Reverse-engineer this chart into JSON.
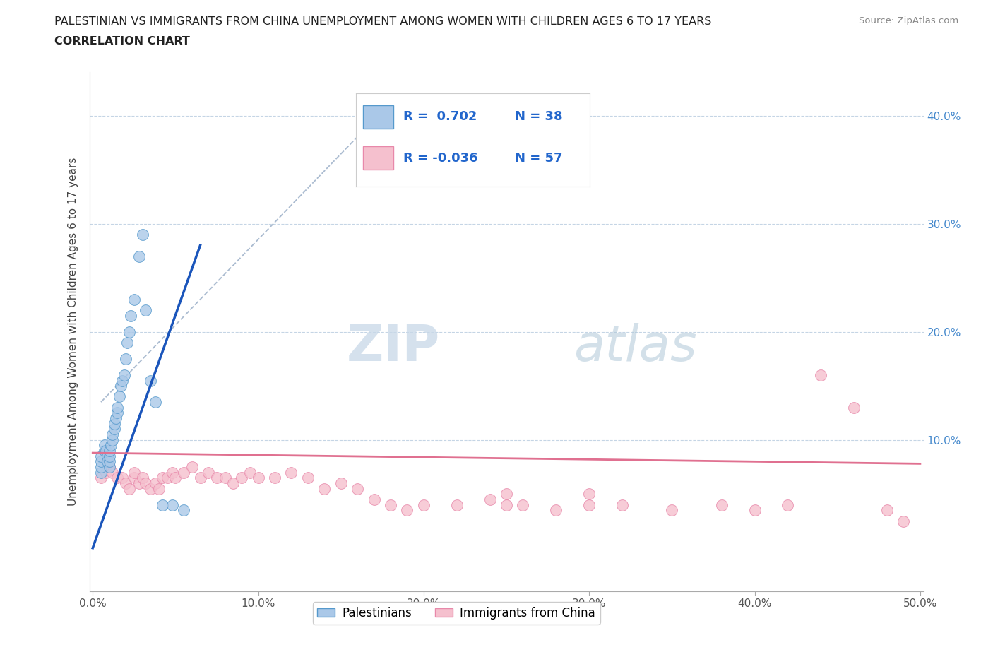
{
  "title_line1": "PALESTINIAN VS IMMIGRANTS FROM CHINA UNEMPLOYMENT AMONG WOMEN WITH CHILDREN AGES 6 TO 17 YEARS",
  "title_line2": "CORRELATION CHART",
  "source": "Source: ZipAtlas.com",
  "ylabel": "Unemployment Among Women with Children Ages 6 to 17 years",
  "xlim": [
    -0.002,
    0.502
  ],
  "ylim": [
    -0.04,
    0.44
  ],
  "xticks": [
    0.0,
    0.1,
    0.2,
    0.3,
    0.4,
    0.5
  ],
  "xticklabels": [
    "0.0%",
    "10.0%",
    "20.0%",
    "30.0%",
    "40.0%",
    "50.0%"
  ],
  "yticks": [
    0.0,
    0.1,
    0.2,
    0.3,
    0.4
  ],
  "yticklabels_right": [
    "",
    "10.0%",
    "20.0%",
    "30.0%",
    "40.0%"
  ],
  "palestinians_color": "#aac8e8",
  "palestinians_edge": "#5599cc",
  "china_color": "#f5c0ce",
  "china_edge": "#e888aa",
  "blue_line_color": "#1a55bb",
  "pink_line_color": "#e07090",
  "dashed_line_color": "#aabbd0",
  "watermark_zip": "ZIP",
  "watermark_atlas": "atlas",
  "palestinians_x": [
    0.005,
    0.005,
    0.005,
    0.005,
    0.007,
    0.007,
    0.008,
    0.009,
    0.009,
    0.01,
    0.01,
    0.01,
    0.01,
    0.011,
    0.012,
    0.012,
    0.013,
    0.013,
    0.014,
    0.015,
    0.015,
    0.016,
    0.017,
    0.018,
    0.019,
    0.02,
    0.021,
    0.022,
    0.023,
    0.025,
    0.028,
    0.03,
    0.032,
    0.035,
    0.038,
    0.042,
    0.048,
    0.055
  ],
  "palestinians_y": [
    0.07,
    0.075,
    0.08,
    0.085,
    0.09,
    0.095,
    0.09,
    0.085,
    0.08,
    0.075,
    0.08,
    0.085,
    0.09,
    0.095,
    0.1,
    0.105,
    0.11,
    0.115,
    0.12,
    0.125,
    0.13,
    0.14,
    0.15,
    0.155,
    0.16,
    0.175,
    0.19,
    0.2,
    0.215,
    0.23,
    0.27,
    0.29,
    0.22,
    0.155,
    0.135,
    0.04,
    0.04,
    0.035
  ],
  "china_x": [
    0.005,
    0.008,
    0.01,
    0.012,
    0.015,
    0.018,
    0.02,
    0.022,
    0.025,
    0.025,
    0.028,
    0.03,
    0.032,
    0.035,
    0.038,
    0.04,
    0.042,
    0.045,
    0.048,
    0.05,
    0.055,
    0.06,
    0.065,
    0.07,
    0.075,
    0.08,
    0.085,
    0.09,
    0.095,
    0.1,
    0.11,
    0.12,
    0.13,
    0.14,
    0.15,
    0.16,
    0.17,
    0.18,
    0.19,
    0.2,
    0.22,
    0.24,
    0.25,
    0.26,
    0.28,
    0.3,
    0.32,
    0.35,
    0.38,
    0.4,
    0.42,
    0.44,
    0.46,
    0.48,
    0.49,
    0.3,
    0.25
  ],
  "china_y": [
    0.065,
    0.07,
    0.075,
    0.07,
    0.065,
    0.065,
    0.06,
    0.055,
    0.065,
    0.07,
    0.06,
    0.065,
    0.06,
    0.055,
    0.06,
    0.055,
    0.065,
    0.065,
    0.07,
    0.065,
    0.07,
    0.075,
    0.065,
    0.07,
    0.065,
    0.065,
    0.06,
    0.065,
    0.07,
    0.065,
    0.065,
    0.07,
    0.065,
    0.055,
    0.06,
    0.055,
    0.045,
    0.04,
    0.035,
    0.04,
    0.04,
    0.045,
    0.05,
    0.04,
    0.035,
    0.04,
    0.04,
    0.035,
    0.04,
    0.035,
    0.04,
    0.16,
    0.13,
    0.035,
    0.025,
    0.05,
    0.04
  ],
  "blue_line_x": [
    0.0,
    0.065
  ],
  "blue_line_y": [
    0.0,
    0.28
  ],
  "pink_line_x": [
    0.0,
    0.5
  ],
  "pink_line_y": [
    0.088,
    0.078
  ],
  "dash_line_x": [
    0.005,
    0.185
  ],
  "dash_line_y": [
    0.135,
    0.42
  ]
}
